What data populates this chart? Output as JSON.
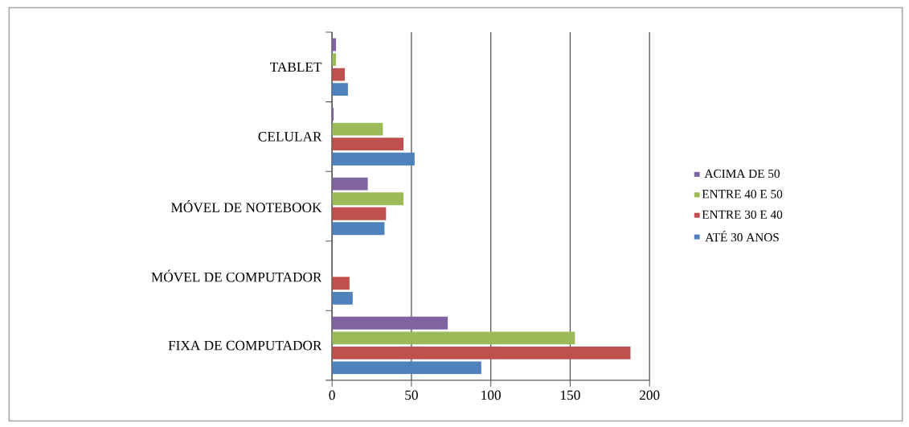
{
  "chart_data": {
    "type": "bar",
    "orientation": "horizontal",
    "categories": [
      "TABLET",
      "CELULAR",
      "MÓVEL DE NOTEBOOK",
      "MÓVEL DE COMPUTADOR",
      "FIXA DE COMPUTADOR"
    ],
    "series": [
      {
        "name": "ATÉ 30 ANOS",
        "color": "#4f81bd",
        "values": [
          10,
          52,
          33,
          13,
          94
        ]
      },
      {
        "name": "ENTRE 30 E 40",
        "color": "#c0504d",
        "values": [
          8,
          45,
          34,
          11,
          188
        ]
      },
      {
        "name": "ENTRE 40 E 50",
        "color": "#9bbb59",
        "values": [
          2.5,
          32,
          45,
          0,
          153
        ]
      },
      {
        "name": "ACIMA DE 50",
        "color": "#8064a2",
        "values": [
          2.5,
          1,
          22.5,
          0,
          73
        ]
      }
    ],
    "xlim": [
      0,
      200
    ],
    "xticks": [
      0,
      50,
      100,
      150,
      200
    ],
    "grid": "x",
    "legend": "right"
  }
}
